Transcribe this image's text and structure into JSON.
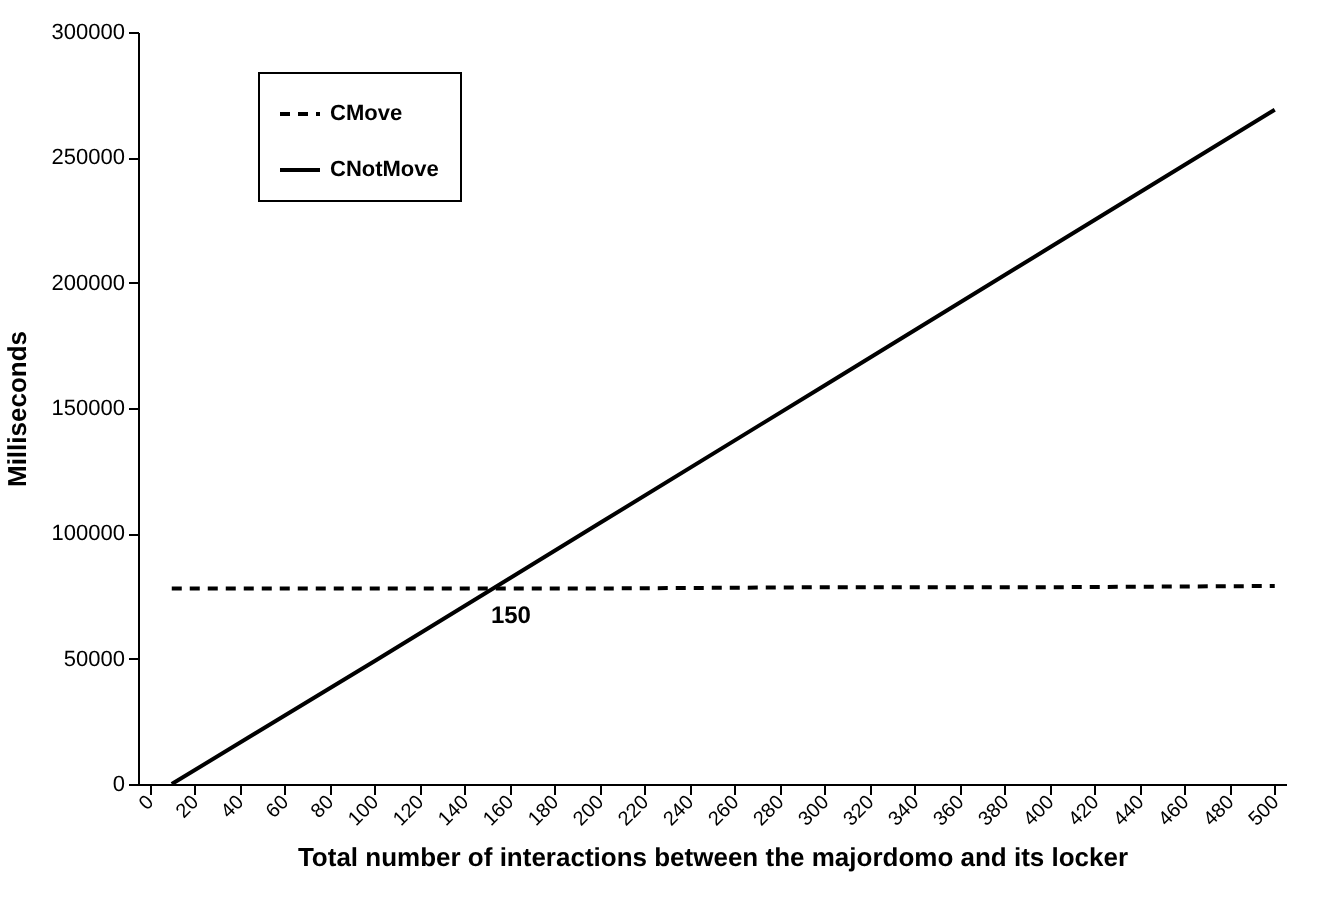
{
  "chart_data": {
    "type": "line",
    "xlabel": "Total number of interactions between the majordomo and its locker",
    "ylabel": "Milliseconds",
    "xlim": [
      -5,
      505
    ],
    "xticks": [
      0,
      20,
      40,
      60,
      80,
      100,
      120,
      140,
      160,
      180,
      200,
      220,
      240,
      260,
      280,
      300,
      320,
      340,
      360,
      380,
      400,
      420,
      440,
      460,
      480,
      500
    ],
    "ylim": [
      0,
      300000
    ],
    "yticks": [
      0,
      50000,
      100000,
      150000,
      200000,
      250000,
      300000
    ],
    "series": [
      {
        "name": "CMove",
        "color": "#000000",
        "line_style": "dashed",
        "x": [
          10,
          100,
          200,
          300,
          400,
          500
        ],
        "values": [
          78000,
          78000,
          78000,
          78500,
          78500,
          79000
        ]
      },
      {
        "name": "CNotMove",
        "color": "#000000",
        "line_style": "solid",
        "x": [
          10,
          100,
          200,
          300,
          400,
          500
        ],
        "values": [
          0,
          49000,
          104000,
          159000,
          214000,
          269000
        ]
      }
    ],
    "annotations": [
      {
        "text": "150",
        "x": 150,
        "y": 77000
      }
    ],
    "grid": false,
    "legend": "top left",
    "marker": "none"
  }
}
